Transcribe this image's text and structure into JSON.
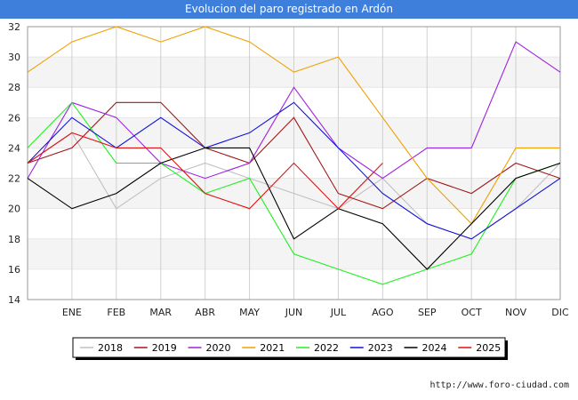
{
  "title": "Evolucion del paro registrado en Ardón",
  "footer_url": "http://www.foro-ciudad.com",
  "chart_data": {
    "type": "line",
    "title": "Evolucion del paro registrado en Ardón",
    "xlabel": "",
    "ylabel": "",
    "categories": [
      "",
      "ENE",
      "FEB",
      "MAR",
      "ABR",
      "MAY",
      "JUN",
      "JUL",
      "AGO",
      "SEP",
      "OCT",
      "NOV",
      "DIC"
    ],
    "ylim": [
      14,
      32
    ],
    "yticks": [
      14,
      16,
      18,
      20,
      22,
      24,
      26,
      28,
      30,
      32
    ],
    "grid": true,
    "legend_position": "bottom",
    "series": [
      {
        "name": "2018",
        "color": "#c0c0c0",
        "values": [
          23,
          25,
          20,
          22,
          23,
          22,
          21,
          20,
          22,
          19,
          18,
          20,
          23
        ]
      },
      {
        "name": "2019",
        "color": "#a01818",
        "values": [
          23,
          24,
          27,
          27,
          24,
          23,
          26,
          21,
          20,
          22,
          21,
          23,
          22
        ]
      },
      {
        "name": "2020",
        "color": "#a020e0",
        "values": [
          22,
          27,
          26,
          23,
          22,
          23,
          28,
          24,
          22,
          24,
          24,
          31,
          29
        ]
      },
      {
        "name": "2021",
        "color": "#f0a000",
        "values": [
          29,
          31,
          32,
          31,
          32,
          31,
          29,
          30,
          26,
          22,
          19,
          24,
          24
        ]
      },
      {
        "name": "2022",
        "color": "#20f020",
        "values": [
          24,
          27,
          23,
          23,
          21,
          22,
          17,
          16,
          15,
          16,
          17,
          22,
          23
        ]
      },
      {
        "name": "2023",
        "color": "#1010e0",
        "values": [
          23,
          26,
          24,
          26,
          24,
          25,
          27,
          24,
          21,
          19,
          18,
          20,
          22
        ]
      },
      {
        "name": "2024",
        "color": "#000000",
        "values": [
          22,
          20,
          21,
          23,
          24,
          24,
          18,
          20,
          19,
          16,
          19,
          22,
          23
        ]
      },
      {
        "name": "2025",
        "color": "#e01010",
        "values": [
          23,
          25,
          24,
          24,
          21,
          20,
          23,
          20,
          23,
          null,
          null,
          null,
          null
        ]
      }
    ]
  }
}
